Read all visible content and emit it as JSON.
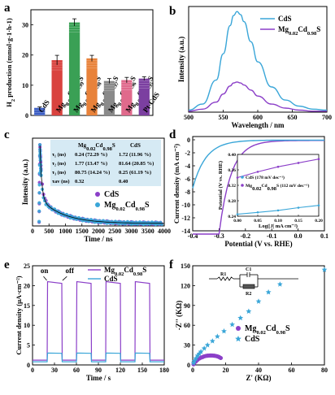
{
  "chart_data": [
    {
      "panel": "a",
      "type": "bar",
      "ylabel": "H₂ production (mmol·g⁻¹·h⁻¹)",
      "ylim": [
        0,
        35
      ],
      "yticks": [
        0,
        10,
        20,
        30
      ],
      "categories": [
        "CdS",
        "Mg0.01Cd0.99S",
        "Mg0.02Cd0.98S",
        "Mg0.03Cd0.97S",
        "Mg0.04Cd0.96S",
        "Mg0.05Cd0.95S",
        "Pt-CdS"
      ],
      "category_labels": [
        {
          "main": "CdS",
          "sub": "",
          "tail": ""
        },
        {
          "main": "Mg",
          "sub": "0.01",
          "mid": "Cd",
          "sub2": "0.99",
          "tail": "S"
        },
        {
          "main": "Mg",
          "sub": "0.02",
          "mid": "Cd",
          "sub2": "0.98",
          "tail": "S"
        },
        {
          "main": "Mg",
          "sub": "0.03",
          "mid": "Cd",
          "sub2": "0.97",
          "tail": "S"
        },
        {
          "main": "Mg",
          "sub": "0.04",
          "mid": "Cd",
          "sub2": "0.96",
          "tail": "S"
        },
        {
          "main": "Mg",
          "sub": "0.05",
          "mid": "Cd",
          "sub2": "0.95",
          "tail": "S"
        },
        {
          "main": "Pt-CdS",
          "sub": "",
          "tail": ""
        }
      ],
      "values": [
        2.5,
        18.3,
        30.8,
        18.9,
        11.4,
        11.7,
        12.2
      ],
      "errors": [
        0.3,
        1.6,
        1.2,
        1.0,
        0.8,
        0.9,
        0.6
      ],
      "colors": [
        "#3d5fc4",
        "#d9433f",
        "#3aa055",
        "#e8823a",
        "#8a8a8a",
        "#e06a8c",
        "#7b3fa0"
      ]
    },
    {
      "panel": "b",
      "type": "line",
      "xlabel": "Wavelength / nm",
      "ylabel": "Intensity (a.u.)",
      "xlim": [
        500,
        700
      ],
      "xticks": [
        500,
        550,
        600,
        650,
        700
      ],
      "series": [
        {
          "name": "CdS",
          "color": "#3aa6d8",
          "x": [
            500,
            520,
            540,
            550,
            560,
            565,
            570,
            575,
            580,
            590,
            600,
            620,
            640,
            660,
            680,
            700
          ],
          "y": [
            0.02,
            0.08,
            0.32,
            0.58,
            0.86,
            0.96,
            1.0,
            0.97,
            0.9,
            0.7,
            0.5,
            0.25,
            0.12,
            0.06,
            0.03,
            0.02
          ]
        },
        {
          "name": "Mg0.02Cd0.98S",
          "color": "#8b3fc8",
          "x": [
            500,
            520,
            540,
            550,
            560,
            565,
            570,
            575,
            580,
            590,
            600,
            620,
            640,
            660,
            680,
            700
          ],
          "y": [
            0.01,
            0.03,
            0.1,
            0.18,
            0.26,
            0.29,
            0.3,
            0.29,
            0.27,
            0.22,
            0.16,
            0.08,
            0.04,
            0.02,
            0.01,
            0.01
          ]
        }
      ],
      "legend": [
        "CdS",
        "Mg0.02Cd0.98S"
      ],
      "legend_placement": "top-right"
    },
    {
      "panel": "c",
      "type": "scatter",
      "xlabel": "Time / ns",
      "ylabel": "Intensity (a.u.)",
      "xlim": [
        0,
        4000
      ],
      "xticks": [
        0,
        500,
        1000,
        1500,
        2000,
        2500,
        3000,
        3500,
        4000
      ],
      "series": [
        {
          "name": "CdS",
          "color": "#8b3fc8"
        },
        {
          "name": "Mg0.02Cd0.98S",
          "color": "#3aa6d8"
        }
      ],
      "table": {
        "headers": [
          "",
          "Mg0.02Cd0.98S",
          "CdS"
        ],
        "rows": [
          [
            "τ₁  (ns)",
            "0.24 (72.29 %)",
            "1.72 (11.96 %)"
          ],
          [
            "τ₂  (ns)",
            "1.77 (13.47 %)",
            "81.64 (20.85 %)"
          ],
          [
            "τ₃  (ns)",
            "80.75 (14.24 %)",
            "0.25 (61.19 %)"
          ],
          [
            "τav  (ns)",
            "0.32",
            "0.40"
          ]
        ]
      },
      "legend_placement": "center-right"
    },
    {
      "panel": "d",
      "type": "line",
      "xlabel": "Potential (V vs. RHE)",
      "ylabel": "Current density (mA cm⁻²)",
      "xlim": [
        -0.4,
        0.1
      ],
      "xticks": [
        -0.4,
        -0.3,
        -0.2,
        -0.1,
        0.0,
        0.1
      ],
      "ylim": [
        -14,
        0.5
      ],
      "yticks": [
        0,
        -2,
        -4,
        -6,
        -8,
        -10,
        -12,
        -14
      ],
      "inset": {
        "xlabel": "Log(|J| mA cm⁻²)",
        "ylabel": "Potential (V vs. RHE)",
        "xlim": [
          0.0,
          0.2
        ],
        "xticks": [
          0.0,
          0.05,
          0.1,
          0.15,
          0.2
        ],
        "ylim": [
          0.24,
          0.4
        ],
        "yticks": [
          0.24,
          0.28,
          0.32,
          0.36,
          0.4
        ],
        "series": [
          {
            "name": "CdS (178 mV dec⁻¹)",
            "color": "#3aa6d8",
            "x": [
              0.0,
              0.05,
              0.1,
              0.15,
              0.2
            ],
            "y": [
              0.245,
              0.25,
              0.255,
              0.262,
              0.268
            ]
          },
          {
            "name": "Mg0.02Cd0.98S (112 mV dec⁻¹)",
            "color": "#8b3fc8",
            "x": [
              0.0,
              0.05,
              0.1,
              0.15,
              0.2
            ],
            "y": [
              0.34,
              0.355,
              0.368,
              0.378,
              0.388
            ]
          }
        ]
      }
    },
    {
      "panel": "e",
      "type": "line",
      "xlabel": "Time / s",
      "ylabel": "Current density (μA·cm⁻²)",
      "xlim": [
        0,
        180
      ],
      "xticks": [
        0,
        30,
        60,
        90,
        120,
        150,
        180
      ],
      "ylim": [
        0,
        25
      ],
      "yticks": [
        0,
        5,
        10,
        15,
        20,
        25
      ],
      "annotations": [
        "on",
        "off"
      ],
      "series": [
        {
          "name": "Mg0.02Cd0.98S",
          "color": "#8b3fc8",
          "on_value": 21,
          "off_value": 1.2
        },
        {
          "name": "CdS",
          "color": "#3aa6d8",
          "on_value": 3,
          "off_value": 0.8
        }
      ],
      "on_intervals": [
        [
          20,
          40
        ],
        [
          60,
          80
        ],
        [
          100,
          120
        ],
        [
          140,
          160
        ]
      ]
    },
    {
      "panel": "f",
      "type": "scatter",
      "xlabel": "Z' (KΩ)",
      "ylabel": "-Z'' (KΩ)",
      "xlim": [
        0,
        80
      ],
      "xticks": [
        0,
        20,
        40,
        60,
        80
      ],
      "ylim": [
        0,
        150
      ],
      "yticks": [
        0,
        30,
        60,
        90,
        120,
        150
      ],
      "circuit_labels": [
        "R1",
        "C1",
        "R2"
      ],
      "series": [
        {
          "name": "Mg0.02Cd0.98S",
          "color": "#8b3fc8",
          "marker": "circle",
          "x": [
            0.5,
            1,
            2,
            3,
            4,
            5,
            6,
            7,
            8,
            9,
            10,
            11,
            12,
            13,
            14,
            15,
            16,
            17
          ],
          "y": [
            1,
            3,
            5.5,
            8,
            9.8,
            11,
            12,
            13,
            13.6,
            14,
            14.2,
            14.3,
            14.2,
            14,
            13.6,
            13,
            12,
            10.5
          ]
        },
        {
          "name": "CdS",
          "color": "#3aa6d8",
          "marker": "star",
          "x": [
            0.5,
            1,
            2,
            3,
            4,
            5,
            7,
            9,
            12,
            15,
            19,
            24,
            29,
            34,
            40,
            46,
            53,
            80
          ],
          "y": [
            3,
            6,
            10,
            14,
            17,
            20,
            25,
            30,
            36,
            43,
            51,
            61,
            71,
            81,
            96,
            110,
            122,
            144
          ]
        }
      ]
    }
  ]
}
